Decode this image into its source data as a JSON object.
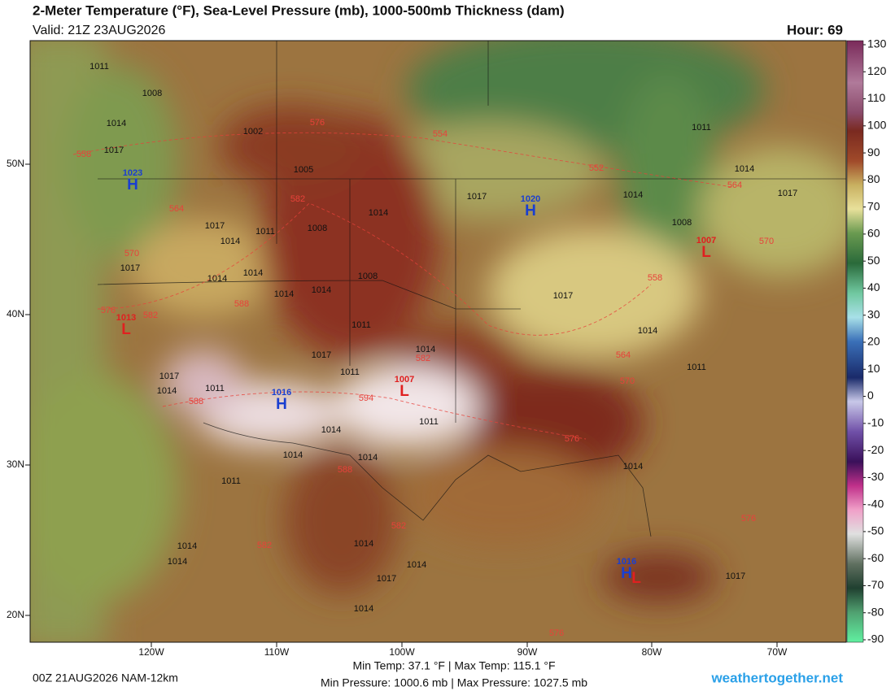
{
  "header": {
    "title": "2-Meter Temperature (°F), Sea-Level Pressure (mb), 1000-500mb Thickness (dam)",
    "valid": "Valid: 21Z 23AUG2026",
    "hour": "Hour: 69"
  },
  "map": {
    "lat_labels": [
      "50N",
      "40N",
      "30N",
      "20N"
    ],
    "lon_labels": [
      "120W",
      "110W",
      "100W",
      "90W",
      "80W",
      "70W"
    ],
    "pressure_labels": [
      "1011",
      "1008",
      "1014",
      "1017",
      "1002",
      "1005",
      "1008",
      "1014",
      "1017",
      "1014",
      "1017",
      "1014",
      "1014",
      "1011",
      "1014",
      "1014",
      "1008",
      "1011",
      "1017",
      "1014",
      "1011",
      "1017",
      "1014",
      "1011",
      "1011",
      "1014",
      "1014",
      "1014",
      "1017",
      "1014",
      "1008",
      "1011",
      "1014",
      "1017",
      "1017",
      "1014",
      "1011",
      "1014",
      "1014",
      "1014",
      "1014",
      "1014",
      "1017",
      "1014",
      "1017",
      "1011"
    ],
    "thickness_labels": [
      "558",
      "564",
      "570",
      "576",
      "582",
      "582",
      "576",
      "588",
      "588",
      "582",
      "594",
      "588",
      "582",
      "582",
      "576",
      "570",
      "564",
      "558",
      "552",
      "554",
      "564",
      "570",
      "576",
      "576"
    ],
    "centers": [
      {
        "letter": "H",
        "value": "1023"
      },
      {
        "letter": "H",
        "value": "1020"
      },
      {
        "letter": "L",
        "value": "1013"
      },
      {
        "letter": "L",
        "value": "1007"
      },
      {
        "letter": "L",
        "value": "1007"
      },
      {
        "letter": "H",
        "value": "1016"
      },
      {
        "letter": "H",
        "value": "1016"
      },
      {
        "letter": "L"
      }
    ]
  },
  "colorbar": {
    "ticks": [
      130,
      120,
      110,
      100,
      90,
      80,
      70,
      60,
      50,
      40,
      30,
      20,
      10,
      0,
      -10,
      -20,
      -30,
      -40,
      -50,
      -60,
      -70,
      -80,
      -90
    ]
  },
  "footer": {
    "run": "00Z 21AUG2026 NAM-12km",
    "temp": "Min Temp:  37.1 °F | Max Temp: 115.1 °F",
    "pressure": "Min Pressure: 1000.6 mb | Max Pressure: 1027.5 mb",
    "site": "weathertogether.net"
  }
}
